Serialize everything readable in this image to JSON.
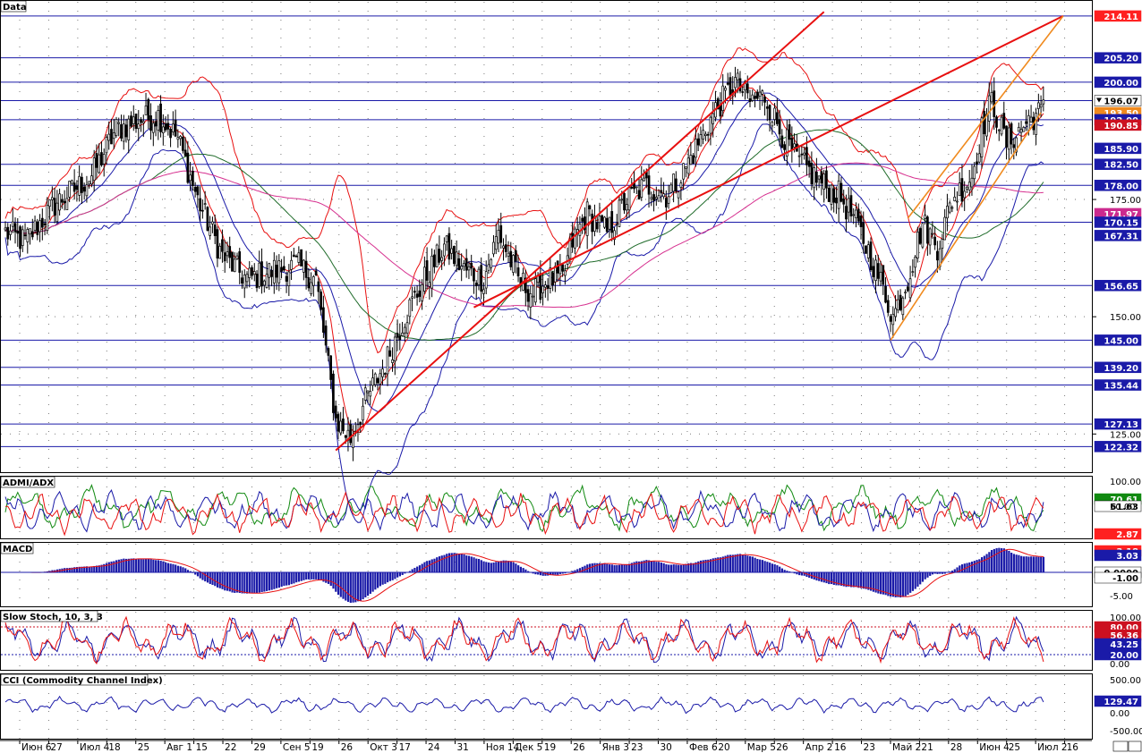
{
  "panels": {
    "price": {
      "title": "Data"
    },
    "adx": {
      "title": "ADMI/ADX"
    },
    "macd": {
      "title": "MACD"
    },
    "stoch": {
      "title": "Slow Stoch, 10, 3, 3"
    },
    "cci": {
      "title": "CCI (Commodity Channel Index)"
    }
  },
  "chart_data": {
    "type": "candlestick",
    "price_axis": {
      "range": [
        118,
        216
      ],
      "ticks": [
        "175.00",
        "150.00",
        "125.00"
      ],
      "level_labels": [
        {
          "value": 214.11,
          "label": "214.11",
          "bg": "#ff2020",
          "fg": "#ffffff"
        },
        {
          "value": 205.2,
          "label": "205.20",
          "bg": "#1a1aa8",
          "fg": "#ffffff"
        },
        {
          "value": 200.0,
          "label": "200.00",
          "bg": "#1a1aa8",
          "fg": "#ffffff"
        },
        {
          "value": 196.07,
          "label": "196.07",
          "bg": "#ffffff",
          "fg": "#000000"
        },
        {
          "value": 193.5,
          "label": "193.50",
          "bg": "#f08a1e",
          "fg": "#ffffff"
        },
        {
          "value": 192.0,
          "label": "192.00",
          "bg": "#1a1aa8",
          "fg": "#ffffff"
        },
        {
          "value": 190.85,
          "label": "190.85",
          "bg": "#cc1020",
          "fg": "#ffffff"
        },
        {
          "value": 185.9,
          "label": "185.90",
          "bg": "#1a1aa8",
          "fg": "#ffffff"
        },
        {
          "value": 182.5,
          "label": "182.50",
          "bg": "#1a1aa8",
          "fg": "#ffffff"
        },
        {
          "value": 178.0,
          "label": "178.00",
          "bg": "#1a1aa8",
          "fg": "#ffffff"
        },
        {
          "value": 171.97,
          "label": "171.97",
          "bg": "#cc2a8e",
          "fg": "#ffffff"
        },
        {
          "value": 170.15,
          "label": "170.15",
          "bg": "#1a1aa8",
          "fg": "#ffffff"
        },
        {
          "value": 167.31,
          "label": "167.31",
          "bg": "#1a1aa8",
          "fg": "#ffffff"
        },
        {
          "value": 156.65,
          "label": "156.65",
          "bg": "#1a1aa8",
          "fg": "#ffffff"
        },
        {
          "value": 145.0,
          "label": "145.00",
          "bg": "#1a1aa8",
          "fg": "#ffffff"
        },
        {
          "value": 139.2,
          "label": "139.20",
          "bg": "#1a1aa8",
          "fg": "#ffffff"
        },
        {
          "value": 135.44,
          "label": "135.44",
          "bg": "#1a1aa8",
          "fg": "#ffffff"
        },
        {
          "value": 127.13,
          "label": "127.13",
          "bg": "#1a1aa8",
          "fg": "#ffffff"
        },
        {
          "value": 122.32,
          "label": "122.32",
          "bg": "#1a1aa8",
          "fg": "#ffffff"
        }
      ],
      "horizontal_levels": [
        214.11,
        205.2,
        200.0,
        196.07,
        192.0,
        182.5,
        178.0,
        170.15,
        156.65,
        145.0,
        139.2,
        135.44,
        127.13,
        122.32
      ]
    },
    "x_labels": [
      "Июн 6",
      "27",
      "Июл 4",
      "18",
      "25",
      "Авг 1",
      "15",
      "22",
      "29",
      "Сен 5",
      "19",
      "26",
      "Окт 3",
      "17",
      "24",
      "31",
      "Ноя 14",
      "Дек 5",
      "19",
      "26",
      "Янв 3",
      "23",
      "30",
      "Фев 6",
      "20",
      "Мар 5",
      "26",
      "Апр 2",
      "16",
      "23",
      "Май 2",
      "21",
      "28",
      "Июн 4",
      "25",
      "Июл 2",
      "16"
    ],
    "price_anchors": [
      [
        0,
        168
      ],
      [
        8,
        166
      ],
      [
        20,
        174
      ],
      [
        35,
        180
      ],
      [
        45,
        190
      ],
      [
        55,
        192
      ],
      [
        62,
        193
      ],
      [
        70,
        188
      ],
      [
        78,
        175
      ],
      [
        88,
        163
      ],
      [
        98,
        158
      ],
      [
        110,
        160
      ],
      [
        118,
        161
      ],
      [
        126,
        158
      ],
      [
        134,
        128
      ],
      [
        140,
        124
      ],
      [
        146,
        132
      ],
      [
        154,
        140
      ],
      [
        162,
        150
      ],
      [
        170,
        158
      ],
      [
        178,
        165
      ],
      [
        186,
        160
      ],
      [
        194,
        158
      ],
      [
        200,
        168
      ],
      [
        208,
        158
      ],
      [
        214,
        155
      ],
      [
        220,
        158
      ],
      [
        226,
        158
      ],
      [
        230,
        166
      ],
      [
        236,
        172
      ],
      [
        244,
        168
      ],
      [
        252,
        175
      ],
      [
        260,
        178
      ],
      [
        268,
        176
      ],
      [
        274,
        180
      ],
      [
        280,
        186
      ],
      [
        288,
        194
      ],
      [
        296,
        200
      ],
      [
        302,
        196
      ],
      [
        308,
        197
      ],
      [
        314,
        190
      ],
      [
        320,
        184
      ],
      [
        326,
        181
      ],
      [
        332,
        178
      ],
      [
        338,
        176
      ],
      [
        344,
        171
      ],
      [
        350,
        164
      ],
      [
        356,
        156
      ],
      [
        360,
        150
      ],
      [
        366,
        158
      ],
      [
        372,
        170
      ],
      [
        378,
        165
      ],
      [
        384,
        175
      ],
      [
        392,
        180
      ],
      [
        396,
        190
      ],
      [
        400,
        196
      ],
      [
        406,
        187
      ],
      [
        412,
        190
      ],
      [
        415,
        192
      ],
      [
        421,
        194
      ]
    ],
    "overlays": {
      "channel_line_1": {
        "from": [
          134,
          121.5
        ],
        "to": [
          332,
          215
        ],
        "color": "#e81010"
      },
      "channel_line_2": {
        "from": [
          190,
          152
        ],
        "to": [
          429,
          214.11
        ],
        "color": "#e81010"
      },
      "orange_channel_upper": {
        "from": [
          366,
          171
        ],
        "to": [
          429,
          214.11
        ],
        "color": "#f08a1e"
      },
      "orange_channel_lower": {
        "from": [
          359,
          145
        ],
        "to": [
          420,
          193.5
        ],
        "color": "#f08a1e"
      }
    },
    "adx": {
      "ticks": [
        "100.00",
        "50.00"
      ],
      "labels": [
        {
          "label": "70.61",
          "bg": "#118a11",
          "fg": "#ffffff"
        },
        {
          "label": "61.63",
          "bg": "#ffffff",
          "fg": "#000000"
        },
        {
          "label": "2.87",
          "bg": "#ff2020",
          "fg": "#ffffff"
        }
      ],
      "series": [
        "ADX (green)",
        "+DI (blue)",
        "-DI (red)"
      ]
    },
    "macd": {
      "ticks": [
        "-5.00"
      ],
      "labels": [
        {
          "label": "3.18",
          "bg": "#ff2020",
          "fg": "#ffffff"
        },
        {
          "label": "3.03",
          "bg": "#1a1aa8",
          "fg": "#ffffff"
        },
        {
          "label": "0.0000",
          "bg": "#ffffff",
          "fg": "#000000"
        },
        {
          "label": "-1.00",
          "bg": "#ffffff",
          "fg": "#000000"
        }
      ]
    },
    "stoch": {
      "ticks": [
        "100.00",
        "0.00"
      ],
      "labels": [
        {
          "label": "80.00",
          "bg": "#cc1020",
          "fg": "#ffffff"
        },
        {
          "label": "56.36",
          "bg": "#cc1020",
          "fg": "#ffffff"
        },
        {
          "label": "43.25",
          "bg": "#1a1aa8",
          "fg": "#ffffff"
        },
        {
          "label": "20.00",
          "bg": "#1a1aa8",
          "fg": "#ffffff"
        }
      ]
    },
    "cci": {
      "ticks": [
        "500.00",
        "0.00",
        "-500.00"
      ],
      "labels": [
        {
          "label": "129.47",
          "bg": "#1a1aa8",
          "fg": "#ffffff"
        }
      ]
    }
  }
}
